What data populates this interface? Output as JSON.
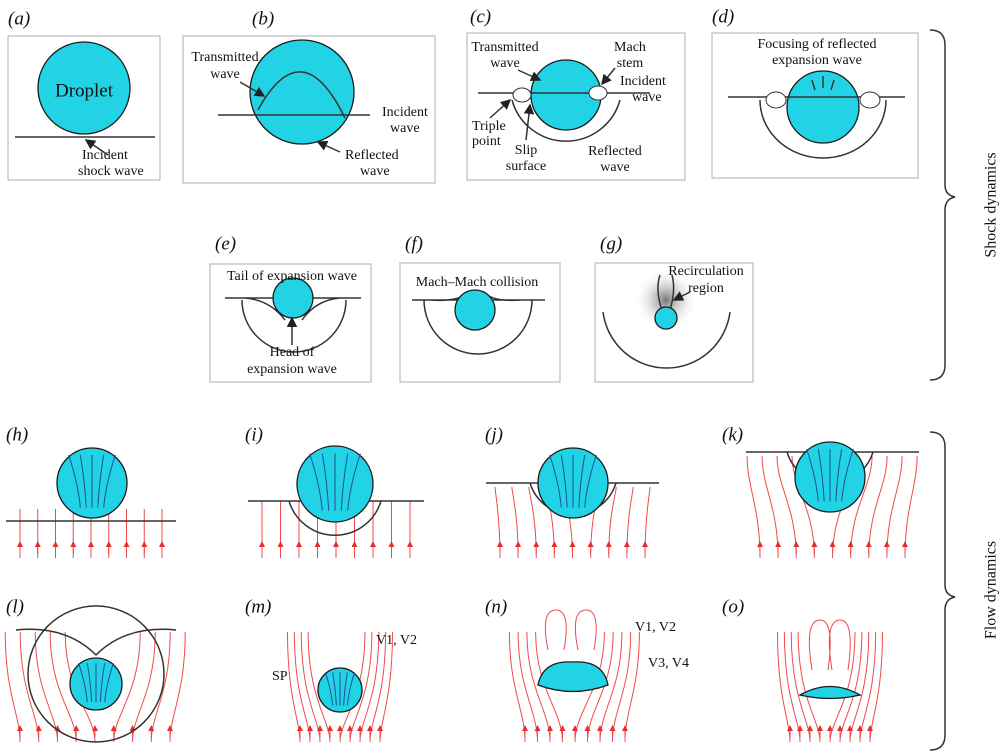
{
  "panels": [
    {
      "label": "(a)",
      "notes": [
        "Droplet",
        "Incident",
        "shock wave"
      ]
    },
    {
      "label": "(b)",
      "notes": [
        "Transmitted",
        "wave",
        "Incident",
        "wave",
        "Reflected",
        "wave"
      ]
    },
    {
      "label": "(c)",
      "notes": [
        "Transmitted",
        "wave",
        "Mach",
        "stem",
        "Incident",
        "wave",
        "Triple",
        "point",
        "Slip",
        "surface",
        "Reflected",
        "wave"
      ]
    },
    {
      "label": "(d)",
      "notes": [
        "Focusing of reflected",
        "expansion wave"
      ]
    },
    {
      "label": "(e)",
      "notes": [
        "Tail of expansion wave",
        "Head of",
        "expansion wave"
      ]
    },
    {
      "label": "(f)",
      "notes": [
        "Mach–Mach collision"
      ]
    },
    {
      "label": "(g)",
      "notes": [
        "Recirculation",
        "region"
      ]
    },
    {
      "label": "(h)",
      "notes": []
    },
    {
      "label": "(i)",
      "notes": []
    },
    {
      "label": "(j)",
      "notes": []
    },
    {
      "label": "(k)",
      "notes": []
    },
    {
      "label": "(l)",
      "notes": []
    },
    {
      "label": "(m)",
      "notes": [
        "V1, V2",
        "SP"
      ]
    },
    {
      "label": "(n)",
      "notes": [
        "V1, V2",
        "V3, V4"
      ]
    },
    {
      "label": "(o)",
      "notes": []
    }
  ],
  "groups": [
    "Shock dynamics",
    "Flow dynamics"
  ]
}
